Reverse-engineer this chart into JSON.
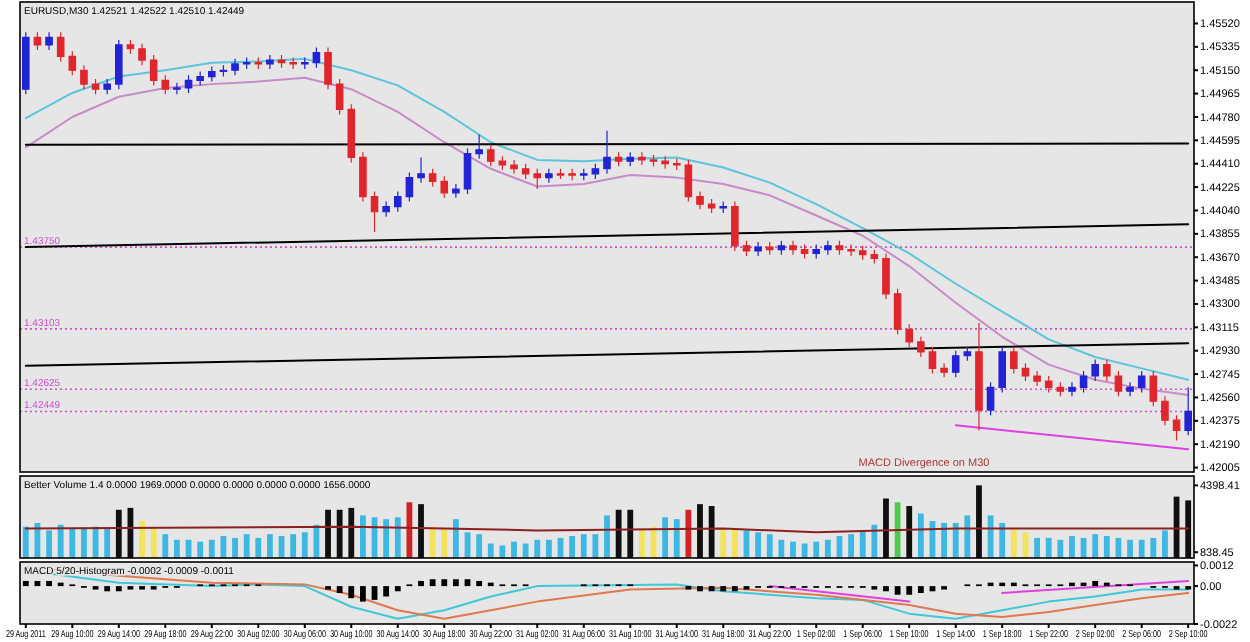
{
  "chart_data": [
    {
      "type": "candlestick",
      "title": "EURUSD,M30 1.42521 1.42522 1.42510 1.42449",
      "tick_labels": "y",
      "ylim": [
        1.4197,
        1.4569
      ],
      "yticks": [
        {
          "value": 1.4552,
          "label": "1.45520"
        },
        {
          "value": 1.45335,
          "label": "1.45335"
        },
        {
          "value": 1.4515,
          "label": "1.45150"
        },
        {
          "value": 1.44965,
          "label": "1.44965"
        },
        {
          "value": 1.4478,
          "label": "1.44780"
        },
        {
          "value": 1.44595,
          "label": "1.44595"
        },
        {
          "value": 1.4441,
          "label": "1.44410"
        },
        {
          "value": 1.44225,
          "label": "1.44225"
        },
        {
          "value": 1.4404,
          "label": "1.44040"
        },
        {
          "value": 1.43855,
          "label": "1.43855"
        },
        {
          "value": 1.4367,
          "label": "1.43670"
        },
        {
          "value": 1.43485,
          "label": "1.43485"
        },
        {
          "value": 1.433,
          "label": "1.43300"
        },
        {
          "value": 1.43115,
          "label": "1.43115"
        },
        {
          "value": 1.4293,
          "label": "1.42930"
        },
        {
          "value": 1.42745,
          "label": "1.42745"
        },
        {
          "value": 1.4256,
          "label": "1.42560"
        },
        {
          "value": 1.42375,
          "label": "1.42375"
        },
        {
          "value": 1.4219,
          "label": "1.42190"
        },
        {
          "value": 1.42005,
          "label": "1.42005"
        }
      ],
      "categories": [
        "29 Aug 2011",
        null,
        null,
        null,
        "29 Aug 10:00",
        null,
        null,
        null,
        "29 Aug 14:00",
        null,
        null,
        null,
        "29 Aug 18:00",
        null,
        null,
        null,
        "29 Aug 22:00",
        null,
        null,
        null,
        "30 Aug 02:00",
        null,
        null,
        null,
        "30 Aug 06:00",
        null,
        null,
        null,
        "30 Aug 10:00",
        null,
        null,
        null,
        "30 Aug 14:00",
        null,
        null,
        null,
        "30 Aug 18:00",
        null,
        null,
        null,
        "30 Aug 22:00",
        null,
        null,
        null,
        "31 Aug 02:00",
        null,
        null,
        null,
        "31 Aug 06:00",
        null,
        null,
        null,
        "31 Aug 10:00",
        null,
        null,
        null,
        "31 Aug 14:00",
        null,
        null,
        null,
        "31 Aug 18:00",
        null,
        null,
        null,
        "31 Aug 22:00",
        null,
        null,
        null,
        "1 Sep 02:00",
        null,
        null,
        null,
        "1 Sep 06:00",
        null,
        null,
        null,
        "1 Sep 10:00",
        null,
        null,
        null,
        "1 Sep 14:00",
        null,
        null,
        null,
        "1 Sep 18:00",
        null,
        null,
        null,
        "1 Sep 22:00",
        null,
        null,
        null,
        "2 Sep 02:00",
        null,
        null,
        null,
        "2 Sep 06:00",
        null,
        null,
        null,
        "2 Sep 10:00"
      ],
      "ohlc": [
        [
          1.45,
          1.4545,
          1.4496,
          1.4541
        ],
        [
          1.4541,
          1.4545,
          1.4531,
          1.4535
        ],
        [
          1.4535,
          1.4545,
          1.4531,
          1.4541
        ],
        [
          1.4541,
          1.4545,
          1.4522,
          1.4526
        ],
        [
          1.4526,
          1.453,
          1.4511,
          1.4515
        ],
        [
          1.4515,
          1.4519,
          1.45,
          1.4504
        ],
        [
          1.4504,
          1.4508,
          1.4496,
          1.45
        ],
        [
          1.45,
          1.4508,
          1.4496,
          1.4504
        ],
        [
          1.4504,
          1.4539,
          1.45,
          1.4535
        ],
        [
          1.4535,
          1.4539,
          1.4528,
          1.4532
        ],
        [
          1.4532,
          1.4536,
          1.4519,
          1.4523
        ],
        [
          1.4523,
          1.4527,
          1.4503,
          1.4507
        ],
        [
          1.4507,
          1.4511,
          1.4496,
          1.45
        ],
        [
          1.45,
          1.4505,
          1.4496,
          1.4501
        ],
        [
          1.4501,
          1.4511,
          1.4497,
          1.4507
        ],
        [
          1.4507,
          1.4514,
          1.4503,
          1.451
        ],
        [
          1.451,
          1.4518,
          1.4506,
          1.4514
        ],
        [
          1.4514,
          1.4519,
          1.451,
          1.4515
        ],
        [
          1.4515,
          1.4524,
          1.4511,
          1.452
        ],
        [
          1.452,
          1.4525,
          1.4516,
          1.4521
        ],
        [
          1.4521,
          1.4525,
          1.4516,
          1.452
        ],
        [
          1.452,
          1.4527,
          1.4516,
          1.4523
        ],
        [
          1.4523,
          1.4527,
          1.4517,
          1.4521
        ],
        [
          1.4521,
          1.4525,
          1.4516,
          1.452
        ],
        [
          1.452,
          1.4525,
          1.4516,
          1.4521
        ],
        [
          1.4521,
          1.4533,
          1.4517,
          1.4529
        ],
        [
          1.4529,
          1.4533,
          1.45,
          1.4504
        ],
        [
          1.4504,
          1.4508,
          1.448,
          1.4484
        ],
        [
          1.4484,
          1.4488,
          1.4442,
          1.4446
        ],
        [
          1.4446,
          1.445,
          1.4411,
          1.4415
        ],
        [
          1.4415,
          1.4419,
          1.4387,
          1.4403
        ],
        [
          1.4403,
          1.4411,
          1.4399,
          1.4407
        ],
        [
          1.4407,
          1.4419,
          1.4403,
          1.4415
        ],
        [
          1.4415,
          1.4434,
          1.4411,
          1.443
        ],
        [
          1.443,
          1.4446,
          1.4426,
          1.4433
        ],
        [
          1.4433,
          1.4437,
          1.4423,
          1.4427
        ],
        [
          1.4427,
          1.4431,
          1.4414,
          1.4418
        ],
        [
          1.4418,
          1.4425,
          1.4414,
          1.4421
        ],
        [
          1.4421,
          1.4453,
          1.4417,
          1.4449
        ],
        [
          1.4449,
          1.4464,
          1.4445,
          1.4452
        ],
        [
          1.4452,
          1.4456,
          1.4439,
          1.4443
        ],
        [
          1.4443,
          1.4447,
          1.4436,
          1.444
        ],
        [
          1.444,
          1.4444,
          1.4433,
          1.4437
        ],
        [
          1.4437,
          1.4441,
          1.4429,
          1.4433
        ],
        [
          1.4433,
          1.4437,
          1.4421,
          1.443
        ],
        [
          1.443,
          1.4437,
          1.4426,
          1.4433
        ],
        [
          1.4433,
          1.4437,
          1.4429,
          1.4433
        ],
        [
          1.4433,
          1.4437,
          1.4428,
          1.4432
        ],
        [
          1.4432,
          1.4437,
          1.4428,
          1.4433
        ],
        [
          1.4433,
          1.4441,
          1.4429,
          1.4437
        ],
        [
          1.4437,
          1.4467,
          1.4433,
          1.4446
        ],
        [
          1.4446,
          1.445,
          1.4439,
          1.4443
        ],
        [
          1.4443,
          1.445,
          1.4439,
          1.4446
        ],
        [
          1.4446,
          1.445,
          1.444,
          1.4444
        ],
        [
          1.4444,
          1.4448,
          1.4439,
          1.4443
        ],
        [
          1.4443,
          1.4447,
          1.4437,
          1.4441
        ],
        [
          1.4441,
          1.4445,
          1.4436,
          1.444
        ],
        [
          1.444,
          1.4444,
          1.4411,
          1.4415
        ],
        [
          1.4415,
          1.4419,
          1.4405,
          1.4409
        ],
        [
          1.4409,
          1.4413,
          1.4402,
          1.4406
        ],
        [
          1.4406,
          1.4411,
          1.4402,
          1.4407
        ],
        [
          1.4407,
          1.4411,
          1.4372,
          1.4376
        ],
        [
          1.4376,
          1.438,
          1.4368,
          1.4372
        ],
        [
          1.4372,
          1.4379,
          1.4368,
          1.4375
        ],
        [
          1.4375,
          1.4379,
          1.4369,
          1.4373
        ],
        [
          1.4373,
          1.438,
          1.4369,
          1.4376
        ],
        [
          1.4376,
          1.438,
          1.4369,
          1.4373
        ],
        [
          1.4373,
          1.4377,
          1.4366,
          1.437
        ],
        [
          1.437,
          1.4377,
          1.4366,
          1.4373
        ],
        [
          1.4373,
          1.438,
          1.4369,
          1.4376
        ],
        [
          1.4376,
          1.438,
          1.4369,
          1.4373
        ],
        [
          1.4373,
          1.4377,
          1.4368,
          1.4372
        ],
        [
          1.4372,
          1.4376,
          1.4365,
          1.4369
        ],
        [
          1.4369,
          1.4373,
          1.4362,
          1.4366
        ],
        [
          1.4366,
          1.437,
          1.4334,
          1.4338
        ],
        [
          1.4338,
          1.4342,
          1.4306,
          1.431
        ],
        [
          1.431,
          1.4314,
          1.4296,
          1.43
        ],
        [
          1.43,
          1.4304,
          1.4288,
          1.4292
        ],
        [
          1.4292,
          1.4296,
          1.4275,
          1.4279
        ],
        [
          1.4279,
          1.4283,
          1.4272,
          1.4276
        ],
        [
          1.4276,
          1.4293,
          1.4272,
          1.4289
        ],
        [
          1.4289,
          1.4296,
          1.4285,
          1.4292
        ],
        [
          1.4292,
          1.4315,
          1.423,
          1.4246
        ],
        [
          1.4246,
          1.4268,
          1.4242,
          1.4264
        ],
        [
          1.4264,
          1.4296,
          1.426,
          1.4292
        ],
        [
          1.4292,
          1.4296,
          1.4275,
          1.4279
        ],
        [
          1.4279,
          1.4283,
          1.4269,
          1.4273
        ],
        [
          1.4273,
          1.4277,
          1.4265,
          1.4269
        ],
        [
          1.4269,
          1.4273,
          1.426,
          1.4264
        ],
        [
          1.4264,
          1.4268,
          1.4257,
          1.4261
        ],
        [
          1.4261,
          1.4268,
          1.4257,
          1.4264
        ],
        [
          1.4264,
          1.4277,
          1.426,
          1.4273
        ],
        [
          1.4273,
          1.4286,
          1.4269,
          1.4282
        ],
        [
          1.4282,
          1.4286,
          1.4269,
          1.4273
        ],
        [
          1.4273,
          1.4277,
          1.4257,
          1.4261
        ],
        [
          1.4261,
          1.4268,
          1.4257,
          1.4264
        ],
        [
          1.4264,
          1.4277,
          1.426,
          1.4273
        ],
        [
          1.4273,
          1.4277,
          1.4249,
          1.4253
        ],
        [
          1.4253,
          1.4257,
          1.4234,
          1.4238
        ],
        [
          1.4238,
          1.4242,
          1.4222,
          1.423
        ],
        [
          1.423,
          1.4264,
          1.4226,
          1.4245
        ]
      ],
      "colors": [
        "#2222d6",
        "#e0262c",
        "#2222d6",
        "#e0262c",
        "#e0262c",
        "#e0262c",
        "#e0262c",
        "#2222d6",
        "#2222d6",
        "#e0262c",
        "#e0262c",
        "#e0262c",
        "#e0262c",
        "#2222d6",
        "#2222d6",
        "#2222d6",
        "#2222d6",
        "#2222d6",
        "#2222d6",
        "#2222d6",
        "#e0262c",
        "#2222d6",
        "#e0262c",
        "#e0262c",
        "#2222d6",
        "#2222d6",
        "#e0262c",
        "#e0262c",
        "#e0262c",
        "#e0262c",
        "#e0262c",
        "#2222d6",
        "#2222d6",
        "#2222d6",
        "#2222d6",
        "#e0262c",
        "#e0262c",
        "#2222d6",
        "#2222d6",
        "#2222d6",
        "#e0262c",
        "#e0262c",
        "#e0262c",
        "#e0262c",
        "#e0262c",
        "#2222d6",
        "#e0262c",
        "#e0262c",
        "#2222d6",
        "#2222d6",
        "#2222d6",
        "#e0262c",
        "#2222d6",
        "#e0262c",
        "#e0262c",
        "#e0262c",
        "#e0262c",
        "#e0262c",
        "#e0262c",
        "#e0262c",
        "#2222d6",
        "#e0262c",
        "#e0262c",
        "#2222d6",
        "#e0262c",
        "#2222d6",
        "#e0262c",
        "#e0262c",
        "#2222d6",
        "#2222d6",
        "#e0262c",
        "#e0262c",
        "#e0262c",
        "#e0262c",
        "#e0262c",
        "#e0262c",
        "#e0262c",
        "#e0262c",
        "#e0262c",
        "#e0262c",
        "#2222d6",
        "#2222d6",
        "#e0262c",
        "#2222d6",
        "#2222d6",
        "#e0262c",
        "#e0262c",
        "#e0262c",
        "#e0262c",
        "#e0262c",
        "#2222d6",
        "#2222d6",
        "#2222d6",
        "#e0262c",
        "#e0262c",
        "#2222d6",
        "#2222d6",
        "#e0262c",
        "#e0262c",
        "#e0262c",
        "#2222d6"
      ],
      "series": [
        {
          "type": "line",
          "color": "#5cc4dc",
          "x": [
            "29 Aug 2011",
            "29 Aug 10:00",
            "29 Aug 14:00",
            "29 Aug 18:00",
            "29 Aug 22:00",
            "30 Aug 02:00",
            "30 Aug 06:00",
            "30 Aug 10:00",
            "30 Aug 14:00",
            "30 Aug 18:00",
            "30 Aug 22:00",
            "31 Aug 02:00",
            "31 Aug 06:00",
            "31 Aug 10:00",
            "31 Aug 14:00",
            "31 Aug 18:00",
            "31 Aug 22:00",
            "1 Sep 02:00",
            "1 Sep 06:00",
            "1 Sep 10:00",
            "1 Sep 14:00",
            "1 Sep 18:00",
            "1 Sep 22:00",
            "2 Sep 02:00",
            "2 Sep 06:00",
            "2 Sep 10:00"
          ],
          "values": [
            1.4477,
            1.4497,
            1.451,
            1.4515,
            1.4521,
            1.4522,
            1.4524,
            1.4515,
            1.4503,
            1.4482,
            1.4458,
            1.4444,
            1.4443,
            1.4445,
            1.4446,
            1.4438,
            1.4426,
            1.4409,
            1.439,
            1.437,
            1.4346,
            1.4324,
            1.4302,
            1.4288,
            1.4279,
            1.427
          ]
        },
        {
          "type": "line",
          "color": "#c88ac8",
          "x": [
            "29 Aug 2011",
            "29 Aug 10:00",
            "29 Aug 14:00",
            "29 Aug 18:00",
            "29 Aug 22:00",
            "30 Aug 02:00",
            "30 Aug 06:00",
            "30 Aug 10:00",
            "30 Aug 14:00",
            "30 Aug 18:00",
            "30 Aug 22:00",
            "31 Aug 02:00",
            "31 Aug 06:00",
            "31 Aug 10:00",
            "31 Aug 14:00",
            "31 Aug 18:00",
            "31 Aug 22:00",
            "1 Sep 02:00",
            "1 Sep 06:00",
            "1 Sep 10:00",
            "1 Sep 14:00",
            "1 Sep 18:00",
            "1 Sep 22:00",
            "2 Sep 02:00",
            "2 Sep 06:00",
            "2 Sep 10:00"
          ],
          "values": [
            1.4454,
            1.4478,
            1.4494,
            1.4501,
            1.4504,
            1.4506,
            1.4509,
            1.45,
            1.4482,
            1.4458,
            1.4437,
            1.4423,
            1.4425,
            1.4432,
            1.443,
            1.4425,
            1.4416,
            1.44,
            1.4384,
            1.436,
            1.4331,
            1.4304,
            1.4282,
            1.427,
            1.4263,
            1.4258
          ]
        },
        {
          "type": "line",
          "color": "#000000",
          "x": [
            "29 Aug 2011",
            "2 Sep 10:00"
          ],
          "values": [
            1.4456,
            1.4457
          ]
        },
        {
          "type": "line",
          "color": "#000000",
          "x": [
            "29 Aug 2011",
            "2 Sep 10:00"
          ],
          "values": [
            1.4375,
            1.4393
          ]
        },
        {
          "type": "line",
          "color": "#000000",
          "x": [
            "29 Aug 2011",
            "2 Sep 10:00"
          ],
          "values": [
            1.4281,
            1.4299
          ]
        },
        {
          "type": "line",
          "color": "#e040e0",
          "x": [
            "1 Sep 14:00",
            "2 Sep 10:00"
          ],
          "values": [
            1.4234,
            1.4215
          ]
        }
      ],
      "ref_lines": [
        {
          "axis": "y",
          "value": 1.4375,
          "label": "1.43750",
          "color": "#d050d0",
          "line_style": "dotted"
        },
        {
          "axis": "y",
          "value": 1.43103,
          "label": "1.43103",
          "color": "#d050d0",
          "line_style": "dotted"
        },
        {
          "axis": "y",
          "value": 1.42625,
          "label": "1.42625",
          "color": "#d050d0",
          "line_style": "dotted"
        },
        {
          "axis": "y",
          "value": 1.42449,
          "label": "1.42449",
          "color": "#d050d0",
          "line_style": "dotted"
        }
      ],
      "annotations": [
        "MACD Divergence on M30"
      ]
    },
    {
      "type": "bar",
      "title": "Better Volume 1.4 0.0000 1969.0000 0.0000 0.0000 0.0000 0.0000 1656.0000",
      "tick_labels": "y",
      "ylim": [
        530,
        4900
      ],
      "yticks": [
        4398.41,
        838.45
      ],
      "categories": [
        "29 Aug 2011",
        null,
        null,
        null,
        "29 Aug 10:00",
        null,
        null,
        null,
        "29 Aug 14:00",
        null,
        null,
        null,
        "29 Aug 18:00",
        null,
        null,
        null,
        "29 Aug 22:00",
        null,
        null,
        null,
        "30 Aug 02:00",
        null,
        null,
        null,
        "30 Aug 06:00",
        null,
        null,
        null,
        "30 Aug 10:00",
        null,
        null,
        null,
        "30 Aug 14:00",
        null,
        null,
        null,
        "30 Aug 18:00",
        null,
        null,
        null,
        "30 Aug 22:00",
        null,
        null,
        null,
        "31 Aug 02:00",
        null,
        null,
        null,
        "31 Aug 06:00",
        null,
        null,
        null,
        "31 Aug 10:00",
        null,
        null,
        null,
        "31 Aug 14:00",
        null,
        null,
        null,
        "31 Aug 18:00",
        null,
        null,
        null,
        "31 Aug 22:00",
        null,
        null,
        null,
        "1 Sep 02:00",
        null,
        null,
        null,
        "1 Sep 06:00",
        null,
        null,
        null,
        "1 Sep 10:00",
        null,
        null,
        null,
        "1 Sep 14:00",
        null,
        null,
        null,
        "1 Sep 18:00",
        null,
        null,
        null,
        "1 Sep 22:00",
        null,
        null,
        null,
        "2 Sep 02:00",
        null,
        null,
        null,
        "2 Sep 06:00",
        null,
        null,
        null,
        "2 Sep 10:00"
      ],
      "values": [
        2200,
        2400,
        2000,
        2300,
        2100,
        2100,
        2200,
        2100,
        3100,
        3200,
        2500,
        2100,
        1800,
        1500,
        1500,
        1400,
        1500,
        1700,
        1600,
        1800,
        1600,
        1800,
        1700,
        1800,
        1900,
        2300,
        3100,
        3100,
        3200,
        2800,
        2700,
        2600,
        2700,
        3500,
        3400,
        2200,
        2100,
        2600,
        1900,
        1800,
        1300,
        1200,
        1400,
        1300,
        1500,
        1500,
        1600,
        1700,
        1800,
        1800,
        2800,
        3100,
        3100,
        2100,
        2200,
        2700,
        2600,
        3100,
        3400,
        3300,
        2100,
        2100,
        2000,
        1900,
        1800,
        1500,
        1400,
        1300,
        1400,
        1500,
        1700,
        1800,
        2000,
        2300,
        3700,
        3500,
        3300,
        2900,
        2500,
        2400,
        2400,
        2800,
        4400,
        2800,
        2400,
        2100,
        1900,
        1600,
        1600,
        1500,
        1700,
        1600,
        1800,
        1700,
        1600,
        1500,
        1500,
        1600,
        2000,
        3800,
        3600
      ],
      "colors": [
        "#3db7e4",
        "#3db7e4",
        "#3db7e4",
        "#3db7e4",
        "#3db7e4",
        "#3db7e4",
        "#3db7e4",
        "#3db7e4",
        "#101010",
        "#101010",
        "#f2e35a",
        "#f2e35a",
        "#3db7e4",
        "#3db7e4",
        "#3db7e4",
        "#3db7e4",
        "#3db7e4",
        "#3db7e4",
        "#3db7e4",
        "#3db7e4",
        "#3db7e4",
        "#3db7e4",
        "#3db7e4",
        "#3db7e4",
        "#3db7e4",
        "#3db7e4",
        "#101010",
        "#101010",
        "#101010",
        "#3db7e4",
        "#3db7e4",
        "#3db7e4",
        "#3db7e4",
        "#d02424",
        "#101010",
        "#f2e35a",
        "#f2e35a",
        "#3db7e4",
        "#3db7e4",
        "#3db7e4",
        "#3db7e4",
        "#3db7e4",
        "#3db7e4",
        "#3db7e4",
        "#3db7e4",
        "#3db7e4",
        "#3db7e4",
        "#3db7e4",
        "#3db7e4",
        "#3db7e4",
        "#3db7e4",
        "#101010",
        "#101010",
        "#f2e35a",
        "#f2e35a",
        "#3db7e4",
        "#3db7e4",
        "#d02424",
        "#101010",
        "#101010",
        "#f2e35a",
        "#f2e35a",
        "#3db7e4",
        "#3db7e4",
        "#3db7e4",
        "#3db7e4",
        "#3db7e4",
        "#3db7e4",
        "#3db7e4",
        "#3db7e4",
        "#3db7e4",
        "#3db7e4",
        "#3db7e4",
        "#3db7e4",
        "#101010",
        "#4ccc4c",
        "#101010",
        "#3db7e4",
        "#3db7e4",
        "#3db7e4",
        "#3db7e4",
        "#3db7e4",
        "#101010",
        "#3db7e4",
        "#3db7e4",
        "#f2e35a",
        "#f2e35a",
        "#3db7e4",
        "#3db7e4",
        "#3db7e4",
        "#3db7e4",
        "#3db7e4",
        "#3db7e4",
        "#3db7e4",
        "#3db7e4",
        "#3db7e4",
        "#3db7e4",
        "#3db7e4",
        "#3db7e4",
        "#101010",
        "#101010"
      ],
      "series": [
        {
          "type": "line",
          "color": "#8b2020",
          "x": [
            "29 Aug 2011",
            "30 Aug 10:00",
            "31 Aug 02:00",
            "31 Aug 18:00",
            "1 Sep 02:00",
            "1 Sep 14:00",
            "2 Sep 10:00"
          ],
          "values": [
            2100,
            2200,
            2000,
            2100,
            1900,
            2100,
            2100
          ]
        }
      ]
    },
    {
      "type": "bar",
      "title": "MACD 5/20-Histogram -0.0002 -0.0009 -0.0011",
      "ylim": [
        -0.0022,
        0.0014
      ],
      "yticks": [
        0.0012,
        {
          "value": 0,
          "label": "0.00"
        },
        -0.0022
      ],
      "categories": [
        "29 Aug 2011",
        null,
        null,
        null,
        "29 Aug 10:00",
        null,
        null,
        null,
        "29 Aug 14:00",
        null,
        null,
        null,
        "29 Aug 18:00",
        null,
        null,
        null,
        "29 Aug 22:00",
        null,
        null,
        null,
        "30 Aug 02:00",
        null,
        null,
        null,
        "30 Aug 06:00",
        null,
        null,
        null,
        "30 Aug 10:00",
        null,
        null,
        null,
        "30 Aug 14:00",
        null,
        null,
        null,
        "30 Aug 18:00",
        null,
        null,
        null,
        "30 Aug 22:00",
        null,
        null,
        null,
        "31 Aug 02:00",
        null,
        null,
        null,
        "31 Aug 06:00",
        null,
        null,
        null,
        "31 Aug 10:00",
        null,
        null,
        null,
        "31 Aug 14:00",
        null,
        null,
        null,
        "31 Aug 18:00",
        null,
        null,
        null,
        "31 Aug 22:00",
        null,
        null,
        null,
        "1 Sep 02:00",
        null,
        null,
        null,
        "1 Sep 06:00",
        null,
        null,
        null,
        "1 Sep 10:00",
        null,
        null,
        null,
        "1 Sep 14:00",
        null,
        null,
        null,
        "1 Sep 18:00",
        null,
        null,
        null,
        "1 Sep 22:00",
        null,
        null,
        null,
        "2 Sep 02:00",
        null,
        null,
        null,
        "2 Sep 06:00",
        null,
        null,
        null,
        "2 Sep 10:00"
      ],
      "values": [
        0.0003,
        0.0003,
        0.0003,
        0.0002,
        0.0001,
        -0.0001,
        -0.0002,
        -0.0003,
        -0.0003,
        -0.0002,
        -0.0002,
        -0.0002,
        -0.0001,
        -0.0001,
        0,
        0.0001,
        0.0001,
        0.0001,
        0.0001,
        0.0001,
        0.0001,
        0,
        0,
        0,
        0,
        0,
        -0.0002,
        -0.0004,
        -0.0007,
        -0.0009,
        -0.0008,
        -0.0006,
        -0.0003,
        0.0001,
        0.0003,
        0.0004,
        0.0004,
        0.0004,
        0.0004,
        0.0003,
        0.0002,
        0.0001,
        0.0001,
        0.0001,
        0,
        0,
        0,
        0,
        0.0001,
        0.0001,
        0.0001,
        0.0001,
        0.0001,
        0,
        0,
        0,
        0,
        -0.0002,
        -0.0003,
        -0.0003,
        -0.0003,
        -0.0003,
        -0.0002,
        -0.0001,
        -0.0001,
        -0.0001,
        -0.0001,
        -0.0001,
        -0.0001,
        -0.0001,
        -0.0001,
        -0.0001,
        -0.0001,
        -0.0002,
        -0.0003,
        -0.0005,
        -0.0005,
        -0.0004,
        -0.0003,
        -0.0002,
        0,
        0.0001,
        0.0001,
        0.0002,
        0.0002,
        0.0002,
        0.0001,
        0.0001,
        0.0001,
        0.0001,
        0.0002,
        0.0002,
        0.0003,
        0.0002,
        0.0001,
        0.0001,
        0,
        -0.0001,
        -0.0001,
        -0.0002,
        -0.0002
      ],
      "color": "#000000",
      "series": [
        {
          "type": "line",
          "color": "#40c8d8",
          "x": [
            "29 Aug 2011",
            "29 Aug 14:00",
            "29 Aug 22:00",
            "30 Aug 02:00",
            "30 Aug 06:00",
            "30 Aug 10:00",
            "30 Aug 14:00",
            "30 Aug 18:00",
            "30 Aug 22:00",
            "31 Aug 02:00",
            "31 Aug 14:00",
            "31 Aug 18:00",
            "1 Sep 02:00",
            "1 Sep 06:00",
            "1 Sep 10:00",
            "1 Sep 14:00",
            "1 Sep 18:00",
            "1 Sep 22:00",
            "2 Sep 02:00",
            "2 Sep 06:00",
            "2 Sep 10:00"
          ],
          "values": [
            0.0009,
            0.0002,
            0,
            0.0001,
            0,
            -0.0012,
            -0.0019,
            -0.0014,
            -0.0006,
            0,
            0.0001,
            -0.0003,
            -0.0007,
            -0.0008,
            -0.0016,
            -0.0019,
            -0.0014,
            -0.0009,
            -0.0006,
            -0.0002,
            -0.0002
          ]
        },
        {
          "type": "line",
          "color": "#e07850",
          "x": [
            "29 Aug 2011",
            "29 Aug 14:00",
            "29 Aug 22:00",
            "30 Aug 06:00",
            "30 Aug 10:00",
            "30 Aug 14:00",
            "30 Aug 18:00",
            "30 Aug 22:00",
            "31 Aug 02:00",
            "31 Aug 10:00",
            "31 Aug 18:00",
            "1 Sep 02:00",
            "1 Sep 10:00",
            "1 Sep 14:00",
            "1 Sep 18:00",
            "1 Sep 22:00",
            "2 Sep 02:00",
            "2 Sep 06:00",
            "2 Sep 10:00"
          ],
          "values": [
            0.0011,
            0.0006,
            0.0002,
            0.0001,
            -0.0005,
            -0.0014,
            -0.0019,
            -0.0014,
            -0.0009,
            -0.0002,
            -0.0001,
            -0.0005,
            -0.0011,
            -0.0016,
            -0.0018,
            -0.0015,
            -0.0011,
            -0.0007,
            -0.0004
          ]
        },
        {
          "type": "line",
          "color": "#e040e0",
          "x": [
            "31 Aug 22:00",
            "1 Sep 10:00"
          ],
          "values": [
            0,
            -0.0009
          ]
        },
        {
          "type": "line",
          "color": "#e040e0",
          "x": [
            "1 Sep 18:00",
            "2 Sep 10:00"
          ],
          "values": [
            -0.0004,
            0.0003
          ]
        }
      ]
    }
  ]
}
